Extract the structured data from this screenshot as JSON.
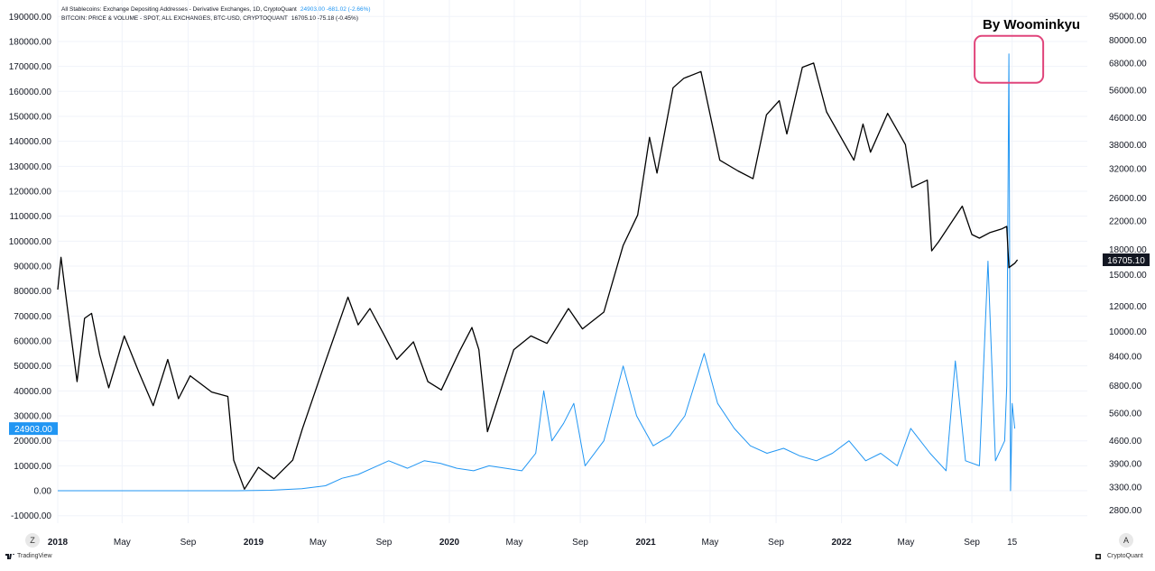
{
  "header": {
    "line1_label": "All Stablecoins: Exchange Depositing Addresses - Derivative Exchanges, 1D, CryptoQuant",
    "line1_values": "24903.00  -681.02 (-2.66%)",
    "line2_label": "BITCOIN: PRICE & VOLUME - SPOT, ALL EXCHANGES, BTC-USD, CRYPTOQUANT",
    "line2_values": "16705.10  -75.18 (-0.45%)"
  },
  "author": "By Woominkyu",
  "buttons": {
    "left": "Z",
    "right": "A"
  },
  "footer": {
    "left_brand": "TradingView",
    "right_brand": "CryptoQuant"
  },
  "colors": {
    "addresses_line": "#2196f3",
    "price_line": "#000000",
    "highlight_box": "#e0457b",
    "grid": "#f0f3fa"
  },
  "chart_data": {
    "type": "line",
    "x_axis": {
      "tick_labels": [
        "2018",
        "May",
        "Sep",
        "2019",
        "May",
        "Sep",
        "2020",
        "May",
        "Sep",
        "2021",
        "May",
        "Sep",
        "2022",
        "May",
        "Sep",
        "15"
      ],
      "tick_dates": [
        "2018-01-01",
        "2018-05-01",
        "2018-09-01",
        "2019-01-01",
        "2019-05-01",
        "2019-09-01",
        "2020-01-01",
        "2020-05-01",
        "2020-09-01",
        "2021-01-01",
        "2021-05-01",
        "2021-09-01",
        "2022-01-01",
        "2022-05-01",
        "2022-09-01",
        "2022-11-15"
      ],
      "range": [
        "2018-01-01",
        "2022-11-29"
      ]
    },
    "y_left": {
      "tick_labels": [
        "190000.00",
        "180000.00",
        "170000.00",
        "160000.00",
        "150000.00",
        "140000.00",
        "130000.00",
        "120000.00",
        "110000.00",
        "100000.00",
        "90000.00",
        "80000.00",
        "70000.00",
        "60000.00",
        "50000.00",
        "40000.00",
        "30000.00",
        "20000.00",
        "10000.00",
        "0.00",
        "-10000.00"
      ],
      "range": [
        -13000,
        193000
      ]
    },
    "y_right": {
      "scale": "log",
      "tick_labels": [
        "95000.00",
        "80000.00",
        "68000.00",
        "56000.00",
        "46000.00",
        "38000.00",
        "32000.00",
        "26000.00",
        "22000.00",
        "18000.00",
        "15000.00",
        "12000.00",
        "10000.00",
        "8400.00",
        "6800.00",
        "5600.00",
        "4600.00",
        "3900.00",
        "3300.00",
        "2800.00"
      ],
      "range": [
        2550,
        100000
      ]
    },
    "last_value_labels": {
      "addresses": "24903.00",
      "price": "16705.10"
    },
    "series": [
      {
        "name": "All Stablecoins: Exchange Depositing Addresses - Derivative Exchanges",
        "axis": "left",
        "points": [
          [
            "2018-01-01",
            0
          ],
          [
            "2018-06-01",
            0
          ],
          [
            "2018-12-01",
            0
          ],
          [
            "2019-02-01",
            200
          ],
          [
            "2019-04-01",
            800
          ],
          [
            "2019-05-15",
            2000
          ],
          [
            "2019-06-15",
            5000
          ],
          [
            "2019-07-15",
            6500
          ],
          [
            "2019-08-20",
            10000
          ],
          [
            "2019-09-10",
            12000
          ],
          [
            "2019-10-15",
            9000
          ],
          [
            "2019-11-15",
            12000
          ],
          [
            "2019-12-15",
            11000
          ],
          [
            "2020-01-15",
            9000
          ],
          [
            "2020-02-15",
            8000
          ],
          [
            "2020-03-15",
            10000
          ],
          [
            "2020-04-15",
            9000
          ],
          [
            "2020-05-15",
            8000
          ],
          [
            "2020-06-10",
            15000
          ],
          [
            "2020-06-25",
            40000
          ],
          [
            "2020-07-10",
            20000
          ],
          [
            "2020-08-01",
            27000
          ],
          [
            "2020-08-20",
            35000
          ],
          [
            "2020-09-10",
            10000
          ],
          [
            "2020-10-15",
            20000
          ],
          [
            "2020-11-20",
            50000
          ],
          [
            "2020-12-15",
            30000
          ],
          [
            "2021-01-15",
            18000
          ],
          [
            "2021-02-15",
            22000
          ],
          [
            "2021-03-15",
            30000
          ],
          [
            "2021-04-20",
            55000
          ],
          [
            "2021-05-15",
            35000
          ],
          [
            "2021-06-15",
            25000
          ],
          [
            "2021-07-15",
            18000
          ],
          [
            "2021-08-15",
            15000
          ],
          [
            "2021-09-15",
            17000
          ],
          [
            "2021-10-15",
            14000
          ],
          [
            "2021-11-15",
            12000
          ],
          [
            "2021-12-15",
            15000
          ],
          [
            "2022-01-15",
            20000
          ],
          [
            "2022-02-15",
            12000
          ],
          [
            "2022-03-15",
            15000
          ],
          [
            "2022-04-15",
            10000
          ],
          [
            "2022-05-10",
            25000
          ],
          [
            "2022-06-15",
            15000
          ],
          [
            "2022-07-15",
            8000
          ],
          [
            "2022-08-01",
            52000
          ],
          [
            "2022-08-20",
            12000
          ],
          [
            "2022-09-15",
            10000
          ],
          [
            "2022-10-01",
            92000
          ],
          [
            "2022-10-15",
            12000
          ],
          [
            "2022-11-01",
            20000
          ],
          [
            "2022-11-05",
            42000
          ],
          [
            "2022-11-09",
            175000
          ],
          [
            "2022-11-12",
            0
          ],
          [
            "2022-11-15",
            35000
          ],
          [
            "2022-11-20",
            24903
          ]
        ]
      },
      {
        "name": "BITCOIN: PRICE & VOLUME",
        "axis": "right",
        "points": [
          [
            "2018-01-01",
            13500
          ],
          [
            "2018-01-07",
            17000
          ],
          [
            "2018-01-20",
            11500
          ],
          [
            "2018-02-06",
            7000
          ],
          [
            "2018-02-20",
            11000
          ],
          [
            "2018-03-05",
            11400
          ],
          [
            "2018-03-20",
            8500
          ],
          [
            "2018-04-06",
            6700
          ],
          [
            "2018-05-05",
            9700
          ],
          [
            "2018-06-01",
            7500
          ],
          [
            "2018-06-28",
            5900
          ],
          [
            "2018-07-25",
            8200
          ],
          [
            "2018-08-14",
            6200
          ],
          [
            "2018-09-05",
            7300
          ],
          [
            "2018-10-15",
            6500
          ],
          [
            "2018-11-14",
            6300
          ],
          [
            "2018-11-25",
            4000
          ],
          [
            "2018-12-15",
            3250
          ],
          [
            "2019-01-10",
            3800
          ],
          [
            "2019-02-08",
            3500
          ],
          [
            "2019-03-15",
            4000
          ],
          [
            "2019-04-02",
            5000
          ],
          [
            "2019-05-14",
            8000
          ],
          [
            "2019-06-26",
            12800
          ],
          [
            "2019-07-15",
            10500
          ],
          [
            "2019-08-06",
            11800
          ],
          [
            "2019-09-01",
            9800
          ],
          [
            "2019-09-25",
            8200
          ],
          [
            "2019-10-26",
            9300
          ],
          [
            "2019-11-22",
            7000
          ],
          [
            "2019-12-17",
            6600
          ],
          [
            "2020-01-20",
            8700
          ],
          [
            "2020-02-12",
            10300
          ],
          [
            "2020-02-25",
            8800
          ],
          [
            "2020-03-12",
            4900
          ],
          [
            "2020-04-30",
            8800
          ],
          [
            "2020-06-01",
            9700
          ],
          [
            "2020-07-01",
            9200
          ],
          [
            "2020-08-10",
            11800
          ],
          [
            "2020-09-05",
            10200
          ],
          [
            "2020-10-15",
            11500
          ],
          [
            "2020-11-20",
            18500
          ],
          [
            "2020-12-17",
            23000
          ],
          [
            "2021-01-08",
            40000
          ],
          [
            "2021-01-22",
            31000
          ],
          [
            "2021-02-21",
            57000
          ],
          [
            "2021-03-13",
            61000
          ],
          [
            "2021-04-14",
            64000
          ],
          [
            "2021-05-19",
            34000
          ],
          [
            "2021-06-22",
            31500
          ],
          [
            "2021-07-20",
            29800
          ],
          [
            "2021-08-14",
            47000
          ],
          [
            "2021-09-07",
            52000
          ],
          [
            "2021-09-21",
            41000
          ],
          [
            "2021-10-20",
            66000
          ],
          [
            "2021-11-10",
            68000
          ],
          [
            "2021-12-04",
            48000
          ],
          [
            "2022-01-24",
            34000
          ],
          [
            "2022-02-10",
            44000
          ],
          [
            "2022-02-24",
            36000
          ],
          [
            "2022-03-28",
            47500
          ],
          [
            "2022-04-30",
            38000
          ],
          [
            "2022-05-12",
            28000
          ],
          [
            "2022-06-10",
            29500
          ],
          [
            "2022-06-18",
            17800
          ],
          [
            "2022-07-01",
            19000
          ],
          [
            "2022-08-14",
            24500
          ],
          [
            "2022-09-01",
            20000
          ],
          [
            "2022-09-15",
            19500
          ],
          [
            "2022-10-05",
            20300
          ],
          [
            "2022-10-26",
            20800
          ],
          [
            "2022-11-05",
            21200
          ],
          [
            "2022-11-09",
            15800
          ],
          [
            "2022-11-20",
            16300
          ],
          [
            "2022-11-25",
            16705.1
          ]
        ]
      }
    ],
    "annotation": {
      "type": "rounded-box",
      "label": ""
    }
  }
}
